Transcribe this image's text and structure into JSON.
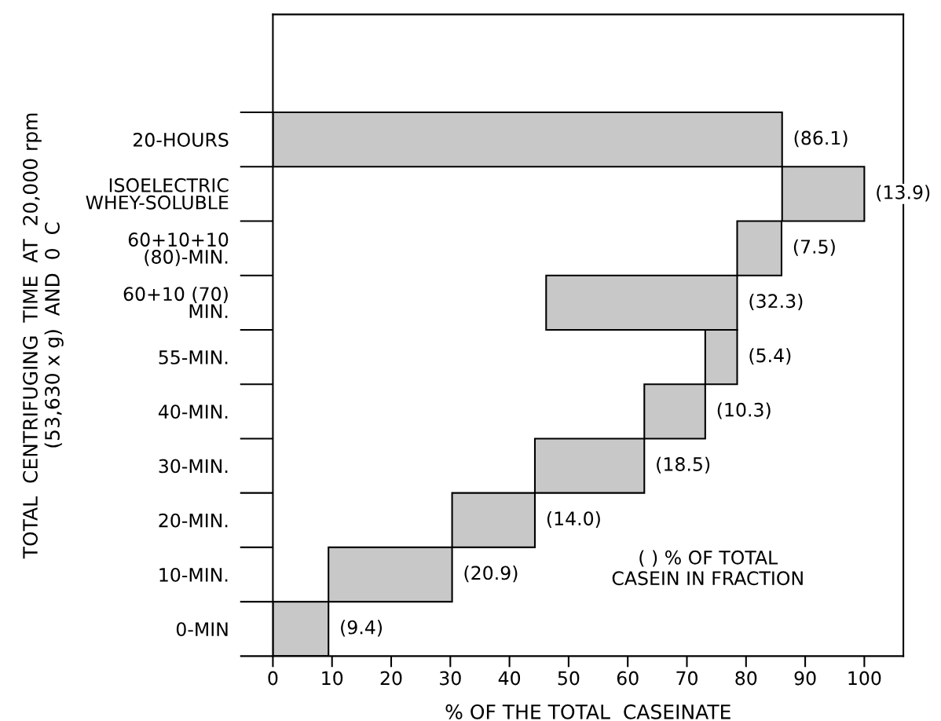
{
  "chart_data": {
    "type": "bar",
    "orientation": "horizontal",
    "categories": [
      "20-HOURS",
      "ISOELECTRIC\nWHEY-SOLUBLE",
      "60+10+10\n(80)-MIN.",
      "60+10 (70)\nMIN.",
      "55-MIN.",
      "40-MIN.",
      "30-MIN.",
      "20-MIN.",
      "10-MIN.",
      "0-MIN"
    ],
    "values": [
      86.1,
      13.9,
      7.5,
      32.3,
      5.4,
      10.3,
      18.5,
      14.0,
      20.9,
      9.4
    ],
    "base": [
      0,
      86.1,
      78.5,
      46.2,
      73.1,
      62.8,
      44.3,
      30.3,
      9.4,
      0
    ],
    "value_labels": [
      "(86.1)",
      "(13.9)",
      "(7.5)",
      "(32.3)",
      "(5.4)",
      "(10.3)",
      "(18.5)",
      "(14.0)",
      "(20.9)",
      "(9.4)"
    ],
    "color": "#c8c8c8",
    "xlabel": "% OF THE TOTAL  CASEINATE",
    "ylabel": "TOTAL  CENTRIFUGING  TIME  AT  20,000 rpm\n(53,630 x g)  AND  0  C",
    "xlim": [
      0,
      106.6
    ],
    "xticks": [
      0,
      10,
      20,
      30,
      40,
      50,
      60,
      70,
      80,
      90,
      100
    ],
    "annotations": [
      "( ) % OF TOTAL\nCASEIN IN FRACTION"
    ],
    "grid": false,
    "legend": false
  }
}
